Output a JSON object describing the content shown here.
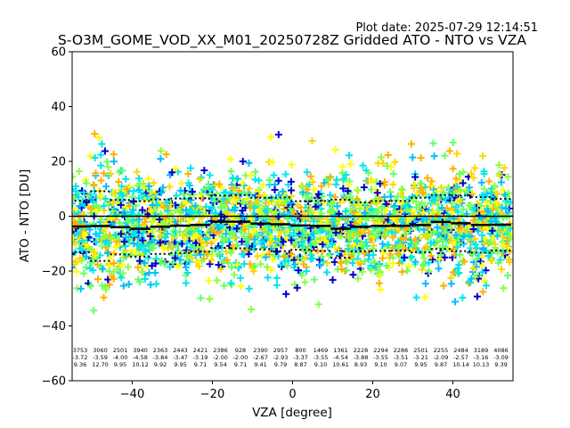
{
  "chart_data": {
    "type": "scatter",
    "plot_date": "Plot date: 2025-07-29 12:14:51",
    "title": "S-O3M_GOME_VOD_XX_M01_20250728Z Gridded ATO - NTO vs VZA",
    "xlabel": "VZA [degree]",
    "ylabel": "ATO - NTO [DU]",
    "xlim": [
      -55,
      55
    ],
    "ylim": [
      -60,
      60
    ],
    "xticks": [
      -40,
      -20,
      0,
      20,
      40
    ],
    "yticks": [
      -60,
      -40,
      -20,
      0,
      20,
      40,
      60
    ],
    "zero_line": 0,
    "marker": "+",
    "point_colors": [
      "#00e5ee",
      "#66ff66",
      "#88ff44",
      "#ffff00",
      "#ffd700",
      "#ffb000",
      "#00bfff",
      "#0000cc"
    ],
    "bins": [
      {
        "x": -53,
        "n": "3753",
        "mean": -3.72,
        "sd": 9.36
      },
      {
        "x": -48,
        "n": "3060",
        "mean": -3.59,
        "sd": 12.7
      },
      {
        "x": -43,
        "n": "2501",
        "mean": -4.0,
        "sd": 9.95
      },
      {
        "x": -38,
        "n": "3940",
        "mean": -4.58,
        "sd": 10.12
      },
      {
        "x": -33,
        "n": "2363",
        "mean": -3.84,
        "sd": 9.92
      },
      {
        "x": -28,
        "n": "2443",
        "mean": -3.47,
        "sd": 9.95
      },
      {
        "x": -23,
        "n": "2421",
        "mean": -3.19,
        "sd": 9.71
      },
      {
        "x": -18,
        "n": "2386",
        "mean": -2.0,
        "sd": 9.54
      },
      {
        "x": -13,
        "n": "928",
        "mean": -2.0,
        "sd": 9.71
      },
      {
        "x": -8,
        "n": "2390",
        "mean": -2.67,
        "sd": 9.41
      },
      {
        "x": -3,
        "n": "2957",
        "mean": -2.93,
        "sd": 9.79
      },
      {
        "x": 2,
        "n": "800",
        "mean": -3.37,
        "sd": 8.87
      },
      {
        "x": 7,
        "n": "1469",
        "mean": -3.55,
        "sd": 9.1
      },
      {
        "x": 12,
        "n": "1361",
        "mean": -4.54,
        "sd": 10.61
      },
      {
        "x": 17,
        "n": "2228",
        "mean": -3.88,
        "sd": 8.93
      },
      {
        "x": 22,
        "n": "2294",
        "mean": -3.55,
        "sd": 9.1
      },
      {
        "x": 27,
        "n": "2286",
        "mean": -3.51,
        "sd": 9.07
      },
      {
        "x": 32,
        "n": "2501",
        "mean": -3.21,
        "sd": 9.95
      },
      {
        "x": 37,
        "n": "2255",
        "mean": -2.09,
        "sd": 9.87
      },
      {
        "x": 42,
        "n": "2484",
        "mean": -2.57,
        "sd": 10.14
      },
      {
        "x": 47,
        "n": "3189",
        "mean": -3.16,
        "sd": 10.13
      },
      {
        "x": 52,
        "n": "4086",
        "mean": -3.09,
        "sd": 9.39
      }
    ]
  }
}
